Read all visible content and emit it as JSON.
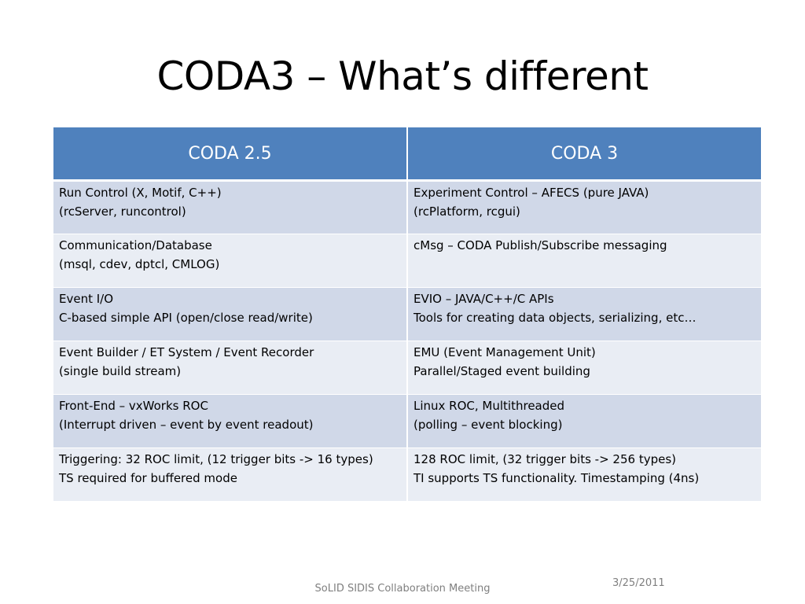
{
  "slide": {
    "title": "CODA3 – What’s different"
  },
  "table": {
    "headers": [
      "CODA 2.5",
      "CODA 3"
    ],
    "rows": [
      {
        "coda25": [
          "Run Control (X, Motif, C++)",
          "(rcServer, runcontrol)"
        ],
        "coda3": [
          "Experiment Control – AFECS (pure JAVA)",
          "(rcPlatform, rcgui)"
        ]
      },
      {
        "coda25": [
          "Communication/Database",
          "(msql, cdev, dptcl, CMLOG)"
        ],
        "coda3": [
          "cMsg – CODA Publish/Subscribe messaging",
          ""
        ]
      },
      {
        "coda25": [
          "Event I/O",
          "C-based simple API (open/close read/write)"
        ],
        "coda3": [
          "EVIO – JAVA/C++/C APIs",
          "Tools for creating data objects, serializing, etc…"
        ]
      },
      {
        "coda25": [
          "Event Builder / ET System / Event Recorder",
          "(single build stream)"
        ],
        "coda3": [
          "EMU (Event Management Unit)",
          "Parallel/Staged event building"
        ]
      },
      {
        "coda25": [
          "Front-End – vxWorks ROC",
          "(Interrupt driven – event by event readout)"
        ],
        "coda3": [
          "Linux ROC, Multithreaded",
          "(polling – event blocking)"
        ]
      },
      {
        "coda25": [
          "Triggering: 32 ROC limit, (12 trigger bits -> 16 types)",
          "TS required for buffered mode"
        ],
        "coda3": [
          "128 ROC limit, (32 trigger bits -> 256 types)",
          "TI supports TS functionality. Timestamping (4ns)"
        ]
      }
    ]
  },
  "footer": {
    "meeting": "SoLID SIDIS Collaboration Meeting",
    "date": "3/25/2011"
  },
  "colors": {
    "header_bg": "#4f81bd",
    "row_odd_bg": "#d0d8e8",
    "row_even_bg": "#e9edf4"
  }
}
